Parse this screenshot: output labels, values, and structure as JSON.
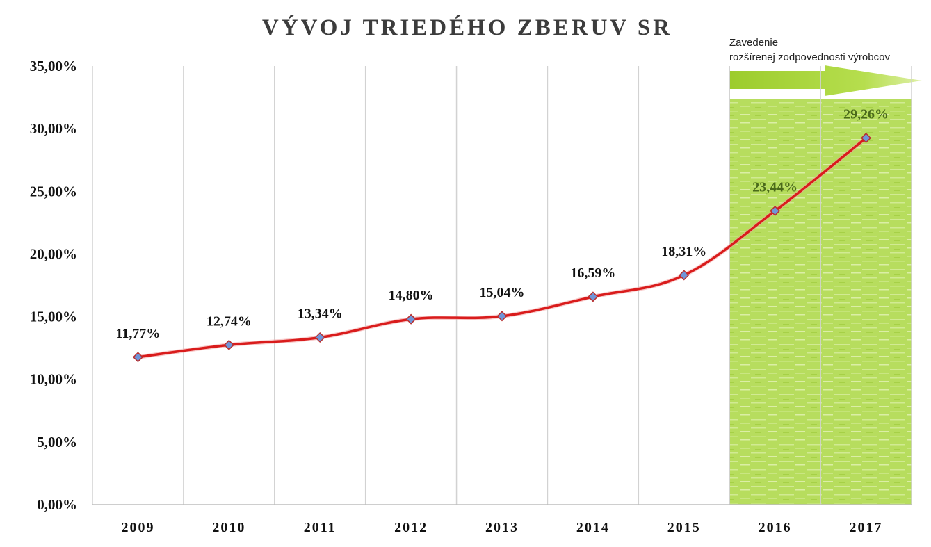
{
  "chart_data": {
    "type": "line",
    "title": "VÝVOJ TRIEDÉHO ZBERUV SR",
    "categories": [
      "2009",
      "2010",
      "2011",
      "2012",
      "2013",
      "2014",
      "2015",
      "2016",
      "2017"
    ],
    "values": [
      11.77,
      12.74,
      13.34,
      14.8,
      15.04,
      16.59,
      18.31,
      23.44,
      29.26
    ],
    "data_labels": [
      "11,77%",
      "12,74%",
      "13,34%",
      "14,80%",
      "15,04%",
      "16,59%",
      "18,31%",
      "23,44%",
      "29,26%"
    ],
    "yticks": [
      "0,00%",
      "5,00%",
      "10,00%",
      "15,00%",
      "20,00%",
      "25,00%",
      "30,00%",
      "35,00%"
    ],
    "ylim": [
      0,
      35
    ],
    "xlabel": "",
    "ylabel": "",
    "grid": "vertical",
    "highlight": {
      "from_category": "2016",
      "label_lines": [
        "Zavedenie",
        "rozšírenej zodpovednosti výrobcov"
      ],
      "color": "#a8d44a"
    },
    "line_color": "#d91c1c",
    "marker_color": "#6f95d8"
  }
}
